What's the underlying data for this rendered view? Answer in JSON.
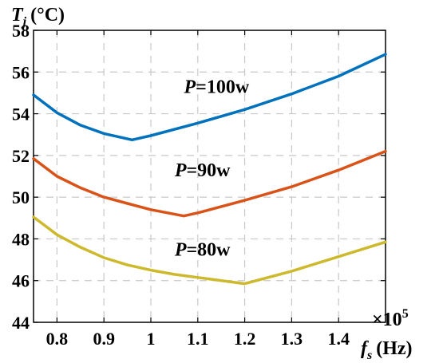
{
  "chart_data": {
    "type": "line",
    "ylabel_var": "T",
    "ylabel_sub": "j",
    "ylabel_unit": "(°C)",
    "xlabel_var": "f",
    "xlabel_sub": "s",
    "xlabel_unit": "(Hz)",
    "x_multiplier_prefix": "×10",
    "x_multiplier_exp": "5",
    "xlim": [
      0.75,
      1.5
    ],
    "ylim": [
      44,
      58
    ],
    "xticks": [
      0.8,
      0.9,
      1.0,
      1.1,
      1.2,
      1.3,
      1.4
    ],
    "xtick_labels": [
      "0.8",
      "0.9",
      "1",
      "1.1",
      "1.2",
      "1.3",
      "1.4"
    ],
    "yticks": [
      44,
      46,
      48,
      50,
      52,
      54,
      56,
      58
    ],
    "ytick_labels": [
      "44",
      "46",
      "48",
      "50",
      "52",
      "54",
      "56",
      "58"
    ],
    "grid": true,
    "series": [
      {
        "color": "#0072bd",
        "points": [
          [
            0.75,
            54.9
          ],
          [
            0.8,
            54.05
          ],
          [
            0.85,
            53.45
          ],
          [
            0.9,
            53.05
          ],
          [
            0.96,
            52.75
          ],
          [
            1.0,
            52.95
          ],
          [
            1.1,
            53.55
          ],
          [
            1.2,
            54.2
          ],
          [
            1.3,
            54.95
          ],
          [
            1.4,
            55.8
          ],
          [
            1.5,
            56.85
          ]
        ]
      },
      {
        "color": "#d95319",
        "points": [
          [
            0.75,
            51.85
          ],
          [
            0.8,
            51.0
          ],
          [
            0.85,
            50.45
          ],
          [
            0.9,
            50.0
          ],
          [
            0.95,
            49.7
          ],
          [
            1.0,
            49.4
          ],
          [
            1.07,
            49.1
          ],
          [
            1.1,
            49.25
          ],
          [
            1.2,
            49.85
          ],
          [
            1.3,
            50.5
          ],
          [
            1.4,
            51.3
          ],
          [
            1.5,
            52.2
          ]
        ]
      },
      {
        "color": "#cdb92d",
        "points": [
          [
            0.75,
            49.05
          ],
          [
            0.8,
            48.2
          ],
          [
            0.85,
            47.6
          ],
          [
            0.9,
            47.1
          ],
          [
            0.95,
            46.75
          ],
          [
            1.0,
            46.5
          ],
          [
            1.05,
            46.3
          ],
          [
            1.1,
            46.15
          ],
          [
            1.2,
            45.85
          ],
          [
            1.3,
            46.45
          ],
          [
            1.4,
            47.15
          ],
          [
            1.5,
            47.85
          ]
        ]
      }
    ],
    "annotations": [
      {
        "prefix": "P",
        "text": "=100w",
        "x": 1.14,
        "y": 55.0
      },
      {
        "prefix": "P",
        "text": "=90w",
        "x": 1.11,
        "y": 51.0
      },
      {
        "prefix": "P",
        "text": "=80w",
        "x": 1.11,
        "y": 47.2
      }
    ]
  }
}
